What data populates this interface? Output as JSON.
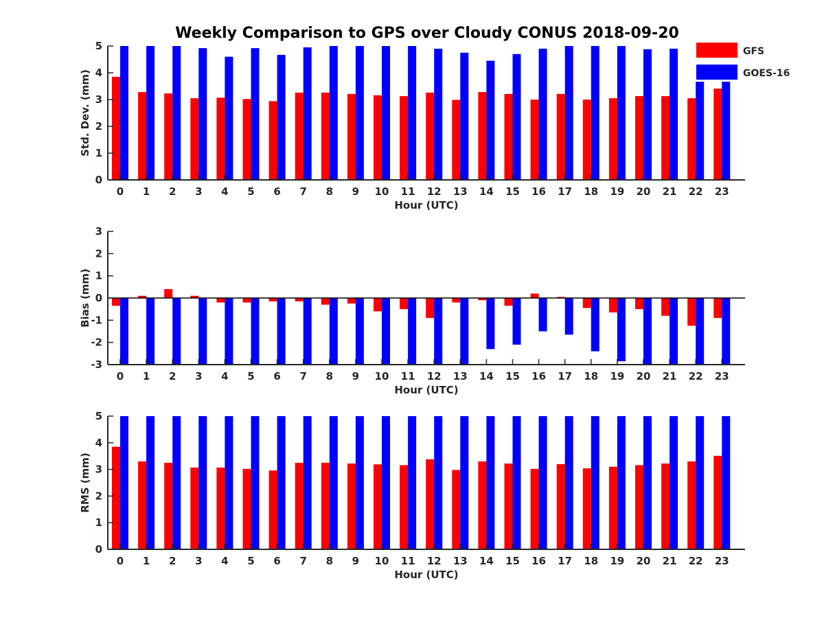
{
  "title": "Weekly Comparison to GPS over Cloudy CONUS 2018-09-20",
  "legend": [
    {
      "label": "GFS",
      "color": "#ff0000"
    },
    {
      "label": "GOES-16",
      "color": "#0000ff"
    }
  ],
  "chart_data": [
    {
      "type": "bar",
      "xlabel": "Hour (UTC)",
      "ylabel": "Std. Dev. (mm)",
      "ylim": [
        0,
        5
      ],
      "yticks": [
        0,
        1,
        2,
        3,
        4,
        5
      ],
      "categories": [
        "0",
        "1",
        "2",
        "3",
        "4",
        "5",
        "6",
        "7",
        "8",
        "9",
        "10",
        "11",
        "12",
        "13",
        "14",
        "15",
        "16",
        "17",
        "18",
        "19",
        "20",
        "21",
        "22",
        "23"
      ],
      "series": [
        {
          "name": "GFS",
          "color": "#ff0000",
          "values": [
            3.85,
            3.28,
            3.23,
            3.05,
            3.07,
            3.02,
            2.94,
            3.26,
            3.26,
            3.21,
            3.16,
            3.13,
            3.26,
            2.99,
            3.28,
            3.21,
            3.0,
            3.21,
            3.0,
            3.05,
            3.13,
            3.13,
            3.05,
            3.41
          ]
        },
        {
          "name": "GOES-16",
          "color": "#0000ff",
          "values": [
            5.0,
            5.0,
            5.0,
            4.92,
            4.6,
            4.92,
            4.67,
            4.95,
            5.0,
            5.0,
            5.0,
            5.0,
            4.9,
            4.75,
            4.45,
            4.7,
            4.9,
            5.0,
            5.0,
            5.0,
            4.88,
            4.9,
            4.85,
            4.8
          ]
        }
      ]
    },
    {
      "type": "bar",
      "xlabel": "Hour (UTC)",
      "ylabel": "Bias (mm)",
      "ylim": [
        -3,
        3
      ],
      "yticks": [
        -3,
        -2,
        -1,
        0,
        1,
        2,
        3
      ],
      "zero_line": true,
      "categories": [
        "0",
        "1",
        "2",
        "3",
        "4",
        "5",
        "6",
        "7",
        "8",
        "9",
        "10",
        "11",
        "12",
        "13",
        "14",
        "15",
        "16",
        "17",
        "18",
        "19",
        "20",
        "21",
        "22",
        "23"
      ],
      "series": [
        {
          "name": "GFS",
          "color": "#ff0000",
          "values": [
            -0.35,
            0.1,
            0.4,
            0.1,
            -0.2,
            -0.2,
            -0.15,
            -0.15,
            -0.3,
            -0.25,
            -0.6,
            -0.5,
            -0.9,
            -0.2,
            -0.1,
            -0.35,
            0.2,
            0.05,
            -0.45,
            -0.65,
            -0.5,
            -0.8,
            -1.25,
            -0.9
          ]
        },
        {
          "name": "GOES-16",
          "color": "#0000ff",
          "values": [
            -3.0,
            -3.0,
            -3.0,
            -3.0,
            -3.0,
            -3.0,
            -3.0,
            -3.0,
            -3.0,
            -3.0,
            -3.0,
            -3.0,
            -3.0,
            -3.0,
            -2.3,
            -2.1,
            -1.5,
            -1.65,
            -2.4,
            -2.85,
            -3.0,
            -3.0,
            -3.0,
            -3.0
          ]
        }
      ]
    },
    {
      "type": "bar",
      "xlabel": "Hour (UTC)",
      "ylabel": "RMS (mm)",
      "ylim": [
        0,
        5
      ],
      "yticks": [
        0,
        1,
        2,
        3,
        4,
        5
      ],
      "categories": [
        "0",
        "1",
        "2",
        "3",
        "4",
        "5",
        "6",
        "7",
        "8",
        "9",
        "10",
        "11",
        "12",
        "13",
        "14",
        "15",
        "16",
        "17",
        "18",
        "19",
        "20",
        "21",
        "22",
        "23"
      ],
      "series": [
        {
          "name": "GFS",
          "color": "#ff0000",
          "values": [
            3.85,
            3.3,
            3.25,
            3.07,
            3.07,
            3.02,
            2.96,
            3.25,
            3.25,
            3.22,
            3.19,
            3.16,
            3.38,
            2.98,
            3.3,
            3.22,
            3.02,
            3.2,
            3.04,
            3.1,
            3.16,
            3.22,
            3.3,
            3.51
          ]
        },
        {
          "name": "GOES-16",
          "color": "#0000ff",
          "values": [
            5.0,
            5.0,
            5.0,
            5.0,
            5.0,
            5.0,
            5.0,
            5.0,
            5.0,
            5.0,
            5.0,
            5.0,
            5.0,
            5.0,
            5.0,
            5.0,
            5.0,
            5.0,
            5.0,
            5.0,
            5.0,
            5.0,
            5.0,
            5.0
          ]
        }
      ]
    }
  ]
}
